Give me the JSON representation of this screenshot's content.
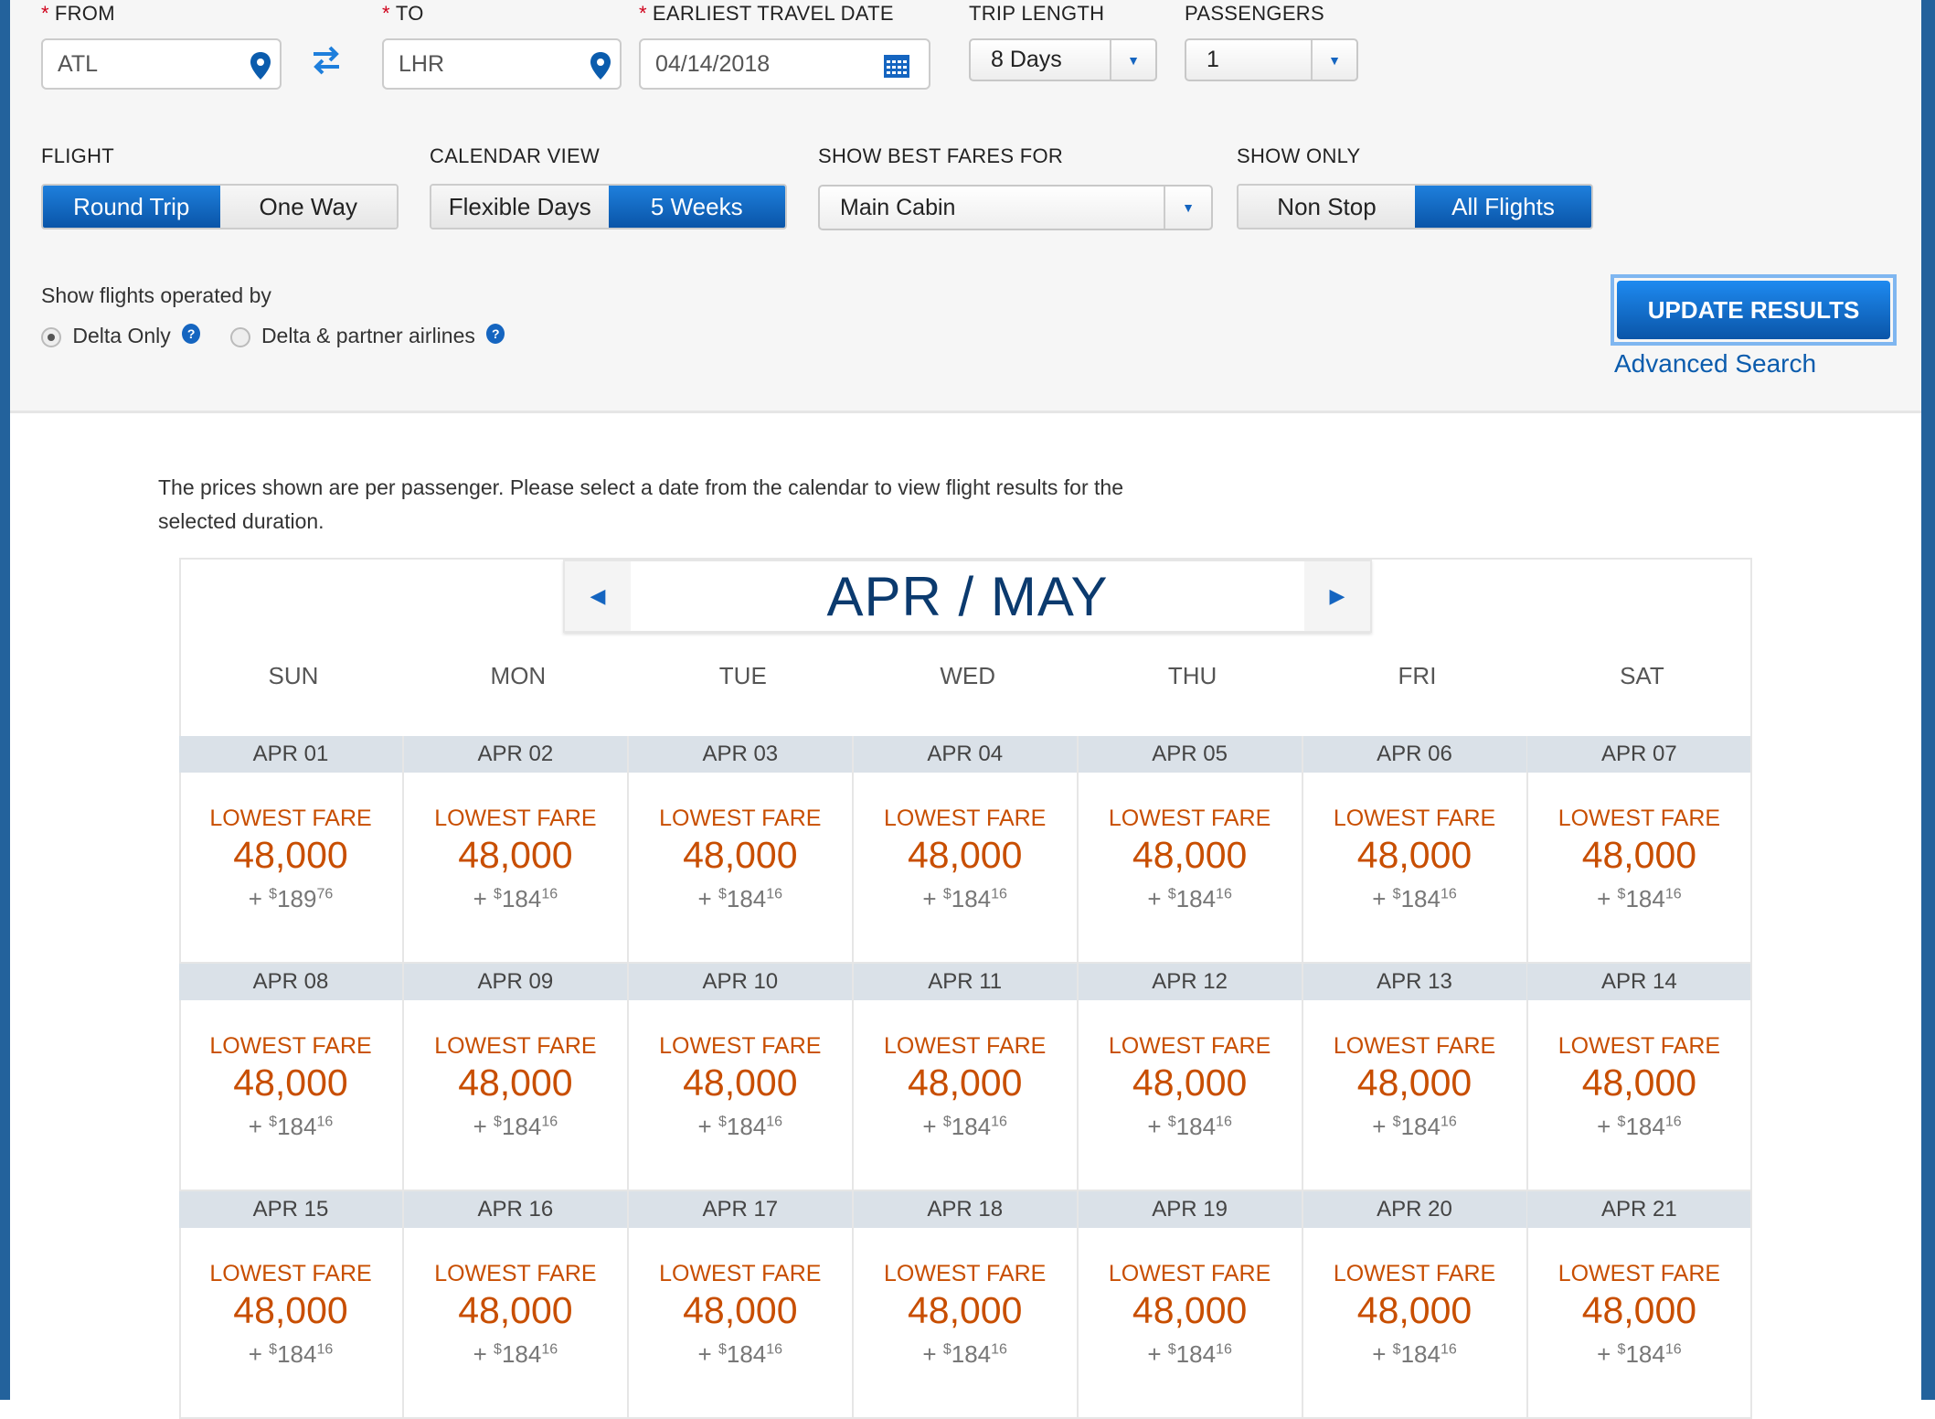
{
  "form": {
    "from": {
      "label": "FROM",
      "value": "ATL"
    },
    "to": {
      "label": "TO",
      "value": "LHR"
    },
    "date": {
      "label": "EARLIEST TRAVEL DATE",
      "value": "04/14/2018"
    },
    "trip_length": {
      "label": "TRIP LENGTH",
      "value": "8 Days"
    },
    "passengers": {
      "label": "PASSENGERS",
      "value": "1"
    },
    "flight": {
      "label": "FLIGHT",
      "options": [
        "Round Trip",
        "One Way"
      ],
      "selected": "Round Trip"
    },
    "calendar_view": {
      "label": "CALENDAR VIEW",
      "options": [
        "Flexible Days",
        "5 Weeks"
      ],
      "selected": "5 Weeks"
    },
    "best_fares": {
      "label": "SHOW BEST FARES FOR",
      "value": "Main Cabin"
    },
    "show_only": {
      "label": "SHOW ONLY",
      "options": [
        "Non Stop",
        "All Flights"
      ],
      "selected": "All Flights"
    },
    "operated_by": {
      "label": "Show flights operated by",
      "options": [
        "Delta Only",
        "Delta & partner airlines"
      ],
      "selected": "Delta Only"
    },
    "update_label": "UPDATE RESULTS",
    "advanced_label": "Advanced Search",
    "required_mark": "*",
    "help_mark": "?"
  },
  "notice": "The prices shown are per passenger. Please select a date from the calendar to view flight results for the selected duration.",
  "calendar": {
    "title": "APR / MAY",
    "days": [
      "SUN",
      "MON",
      "TUE",
      "WED",
      "THU",
      "FRI",
      "SAT"
    ],
    "fare_label": "LOWEST FARE",
    "weeks": [
      [
        {
          "date": "APR 01",
          "miles": "48,000",
          "tax": "189",
          "cents": "76"
        },
        {
          "date": "APR 02",
          "miles": "48,000",
          "tax": "184",
          "cents": "16"
        },
        {
          "date": "APR 03",
          "miles": "48,000",
          "tax": "184",
          "cents": "16"
        },
        {
          "date": "APR 04",
          "miles": "48,000",
          "tax": "184",
          "cents": "16"
        },
        {
          "date": "APR 05",
          "miles": "48,000",
          "tax": "184",
          "cents": "16"
        },
        {
          "date": "APR 06",
          "miles": "48,000",
          "tax": "184",
          "cents": "16"
        },
        {
          "date": "APR 07",
          "miles": "48,000",
          "tax": "184",
          "cents": "16"
        }
      ],
      [
        {
          "date": "APR 08",
          "miles": "48,000",
          "tax": "184",
          "cents": "16"
        },
        {
          "date": "APR 09",
          "miles": "48,000",
          "tax": "184",
          "cents": "16"
        },
        {
          "date": "APR 10",
          "miles": "48,000",
          "tax": "184",
          "cents": "16"
        },
        {
          "date": "APR 11",
          "miles": "48,000",
          "tax": "184",
          "cents": "16"
        },
        {
          "date": "APR 12",
          "miles": "48,000",
          "tax": "184",
          "cents": "16"
        },
        {
          "date": "APR 13",
          "miles": "48,000",
          "tax": "184",
          "cents": "16"
        },
        {
          "date": "APR 14",
          "miles": "48,000",
          "tax": "184",
          "cents": "16"
        }
      ],
      [
        {
          "date": "APR 15",
          "miles": "48,000",
          "tax": "184",
          "cents": "16"
        },
        {
          "date": "APR 16",
          "miles": "48,000",
          "tax": "184",
          "cents": "16"
        },
        {
          "date": "APR 17",
          "miles": "48,000",
          "tax": "184",
          "cents": "16"
        },
        {
          "date": "APR 18",
          "miles": "48,000",
          "tax": "184",
          "cents": "16"
        },
        {
          "date": "APR 19",
          "miles": "48,000",
          "tax": "184",
          "cents": "16"
        },
        {
          "date": "APR 20",
          "miles": "48,000",
          "tax": "184",
          "cents": "16"
        },
        {
          "date": "APR 21",
          "miles": "48,000",
          "tax": "184",
          "cents": "16"
        }
      ]
    ]
  },
  "colors": {
    "brand_blue": "#1565c0",
    "fare_orange": "#c84e00",
    "date_header": "#dae1e8"
  }
}
